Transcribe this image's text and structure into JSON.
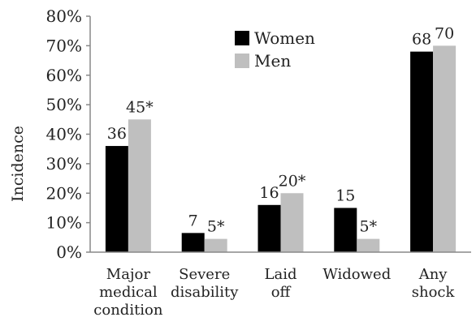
{
  "chart_data": {
    "type": "bar",
    "title": "",
    "xlabel": "",
    "ylabel": "Incidence",
    "ylim": [
      0,
      80
    ],
    "yticks": [
      "0%",
      "10%",
      "20%",
      "30%",
      "40%",
      "50%",
      "60%",
      "70%",
      "80%"
    ],
    "categories": [
      [
        "Major",
        "medical",
        "condition"
      ],
      [
        "Severe",
        "disability"
      ],
      [
        "Laid",
        "off"
      ],
      [
        "Widowed"
      ],
      [
        "Any",
        "shock"
      ]
    ],
    "series": [
      {
        "name": "Women",
        "color": "#000000",
        "values": [
          36,
          6.5,
          16,
          15,
          68
        ],
        "labels": [
          "36",
          "7",
          "16",
          "15",
          "68"
        ]
      },
      {
        "name": "Men",
        "color": "#bfbfbf",
        "values": [
          45,
          4.5,
          20,
          4.5,
          70
        ],
        "labels": [
          "45*",
          "5*",
          "20*",
          "5*",
          "70"
        ]
      }
    ],
    "grid": false,
    "legend_position": "top-center"
  }
}
